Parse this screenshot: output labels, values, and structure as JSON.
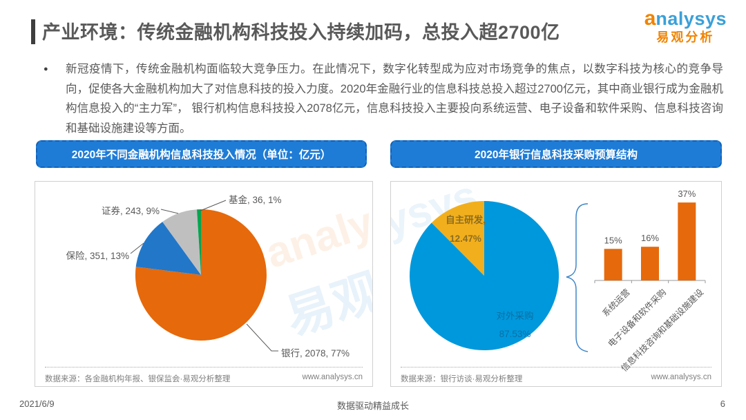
{
  "header": {
    "title": "产业环境：传统金融机构科技投入持续加码，总投入超2700亿",
    "logo": {
      "brand_prefix": "a",
      "brand_rest": "nalysys",
      "brand_cn": "易观分析"
    }
  },
  "intro": {
    "bullet": "●",
    "text": "新冠疫情下，传统金融机构面临较大竞争压力。在此情况下，数字化转型成为应对市场竞争的焦点，以数字科技为核心的竞争导向，促使各大金融机构加大了对信息科技的投入力度。2020年金融行业的信息科技总投入超过2700亿元，其中商业银行成为金融机构信息投入的“主力军”， 银行机构信息科技投入2078亿元，信息科技投入主要投向系统运营、电子设备和软件采购、信息科技咨询和基础设施建设等方面。"
  },
  "left_panel": {
    "header": "2020年不同金融机构信息科技投入情况（单位：亿元）",
    "source": "数据来源：各金融机构年报、银保监会·易观分析整理",
    "website": "www.analysys.cn"
  },
  "right_panel": {
    "header": "2020年银行信息科技采购预算结构",
    "source": "数据来源：银行访谈·易观分析整理",
    "website": "www.analysys.cn"
  },
  "footer": {
    "date": "2021/6/9",
    "slogan": "数据驱动精益成长",
    "page_number": "6"
  },
  "watermarks": {
    "w1": "analysys",
    "w2": "易观",
    "w3": "ysys"
  },
  "colors": {
    "banner_blue": "#1F7CD6",
    "orange": "#E6690B",
    "bank_blue": "#2277C9",
    "gray": "#BFBFBF",
    "green": "#00A650",
    "outsource_blue": "#0098DC",
    "selfdev_yellow": "#F2AF1D"
  },
  "chart_data": [
    {
      "type": "pie",
      "title": "2020年不同金融机构信息科技投入情况",
      "unit": "亿元",
      "slices": [
        {
          "label": "银行",
          "value": 2078,
          "pct": 77,
          "color": "#E6690B",
          "label_text": "银行, 2078, 77%"
        },
        {
          "label": "保险",
          "value": 351,
          "pct": 13,
          "color": "#2277C9",
          "label_text": "保险, 351, 13%"
        },
        {
          "label": "证券",
          "value": 243,
          "pct": 9,
          "color": "#BFBFBF",
          "label_text": "证券, 243, 9%"
        },
        {
          "label": "基金",
          "value": 36,
          "pct": 1,
          "color": "#00A650",
          "label_text": "基金, 36, 1%"
        }
      ]
    },
    {
      "type": "pie",
      "title": "2020年银行信息科技采购预算结构",
      "slices": [
        {
          "label": "对外采购",
          "pct": 87.53,
          "color": "#0098DC",
          "label_name": "对外采购",
          "label_pct": "87.53%"
        },
        {
          "label": "自主研发",
          "pct": 12.47,
          "color": "#F2AF1D",
          "label_name": "自主研发,",
          "label_pct": "12.47%"
        }
      ]
    },
    {
      "type": "bar",
      "categories": [
        "系统运营",
        "电子设备和软件采购",
        "信息科技咨询和基础设施建设"
      ],
      "values": [
        15,
        16,
        37
      ],
      "value_labels": [
        "15%",
        "16%",
        "37%"
      ],
      "bar_color": "#E6690B",
      "ylim": [
        0,
        40
      ],
      "xlabel": "",
      "ylabel": ""
    }
  ]
}
